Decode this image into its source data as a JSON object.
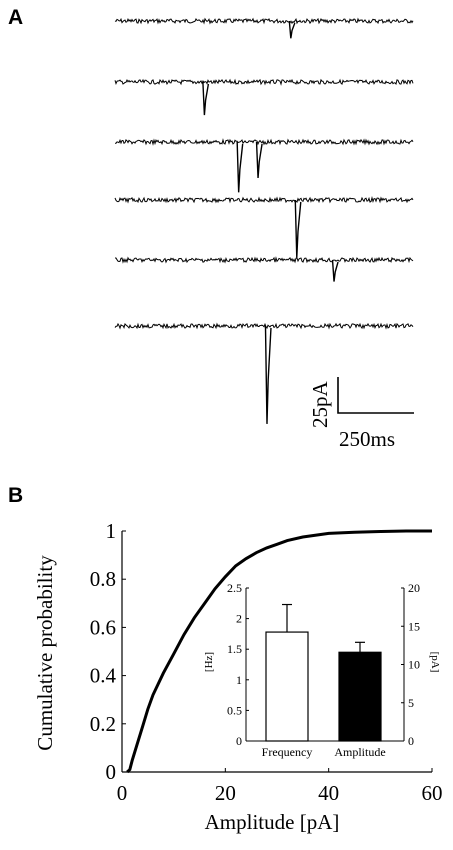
{
  "panel_a": {
    "label": "A",
    "trace_color": "#000000",
    "scale_bar": {
      "vertical_label": "25pA",
      "horizontal_label": "250ms"
    },
    "traces": [
      {
        "events": [
          {
            "t": 0.59,
            "amp": 12
          }
        ]
      },
      {
        "events": [
          {
            "t": 0.3,
            "amp": 23
          }
        ]
      },
      {
        "events": [
          {
            "t": 0.415,
            "amp": 35
          },
          {
            "t": 0.48,
            "amp": 25
          }
        ]
      },
      {
        "events": [
          {
            "t": 0.61,
            "amp": 40
          }
        ]
      },
      {
        "events": [
          {
            "t": 0.735,
            "amp": 15
          }
        ]
      },
      {
        "events": [
          {
            "t": 0.51,
            "amp": 68
          }
        ]
      }
    ]
  },
  "panel_b": {
    "label": "B"
  },
  "chart_data": [
    {
      "type": "line",
      "title": "",
      "xlabel": "Amplitude [pA]",
      "ylabel": "Cumulative probability",
      "xlim": [
        0,
        60
      ],
      "ylim": [
        0,
        1
      ],
      "xticks": [
        "0",
        "20",
        "40",
        "60"
      ],
      "yticks": [
        "0",
        "0.2",
        "0.4",
        "0.6",
        "0.8",
        "1"
      ],
      "grid": false,
      "color": "#000000",
      "x": [
        1,
        1.5,
        2,
        3,
        4,
        5,
        6,
        8,
        10,
        12,
        14,
        16,
        18,
        20,
        22,
        24,
        26,
        28,
        30,
        32,
        35,
        40,
        45,
        50,
        55,
        60
      ],
      "y": [
        0,
        0.01,
        0.05,
        0.12,
        0.19,
        0.26,
        0.32,
        0.41,
        0.49,
        0.57,
        0.64,
        0.7,
        0.76,
        0.81,
        0.855,
        0.885,
        0.91,
        0.93,
        0.945,
        0.96,
        0.975,
        0.99,
        0.995,
        0.998,
        1.0,
        1.0
      ]
    },
    {
      "type": "bar",
      "title": "",
      "categories": [
        "Frequency",
        "Amplitude"
      ],
      "left_axis": {
        "label": "[Hz]",
        "ylim": [
          0,
          2.5
        ],
        "ticks": [
          "0",
          "0.5",
          "1",
          "1.5",
          "2",
          "2.5"
        ]
      },
      "right_axis": {
        "label": "[pA]",
        "ylim": [
          0,
          20
        ],
        "ticks": [
          "0",
          "5",
          "10",
          "15",
          "20"
        ]
      },
      "bars": [
        {
          "category": "Frequency",
          "value": 1.78,
          "error": 0.45,
          "axis": "left",
          "fill": "#ffffff"
        },
        {
          "category": "Amplitude",
          "value": 11.6,
          "error": 1.3,
          "axis": "right",
          "fill": "#000000"
        }
      ]
    }
  ]
}
